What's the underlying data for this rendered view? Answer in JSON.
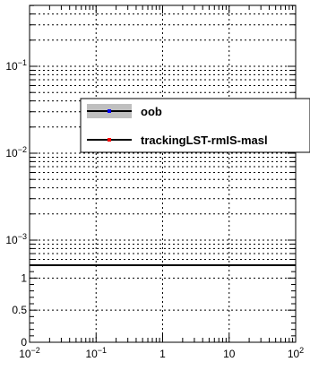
{
  "chart_data": [
    {
      "type": "line",
      "panel": "main",
      "title": "",
      "xlabel": "",
      "ylabel": "",
      "x_scale": "log",
      "y_scale": "log",
      "xlim": [
        0.01,
        100
      ],
      "grid": true,
      "y_tick_labels": [
        "10^-3",
        "10^-2",
        "10^-1"
      ],
      "legend": {
        "placement": "center-right",
        "entries": [
          {
            "label": "oob",
            "line_color": "#000000",
            "marker_color": "#0000ff",
            "band_color": "#bfbfbf"
          },
          {
            "label": "trackingLST-rmIS-masl",
            "line_color": "#000000",
            "marker_color": "#ff0000"
          }
        ]
      },
      "series": []
    },
    {
      "type": "line",
      "panel": "ratio",
      "x_scale": "log",
      "xlim": [
        0.01,
        100
      ],
      "ylim": [
        0,
        1.2
      ],
      "grid": true,
      "x_tick_labels": [
        "10^-2",
        "10^-1",
        "1",
        "10",
        "10^2"
      ],
      "y_tick_labels": [
        "0",
        "0.5",
        "1"
      ],
      "series": []
    }
  ]
}
